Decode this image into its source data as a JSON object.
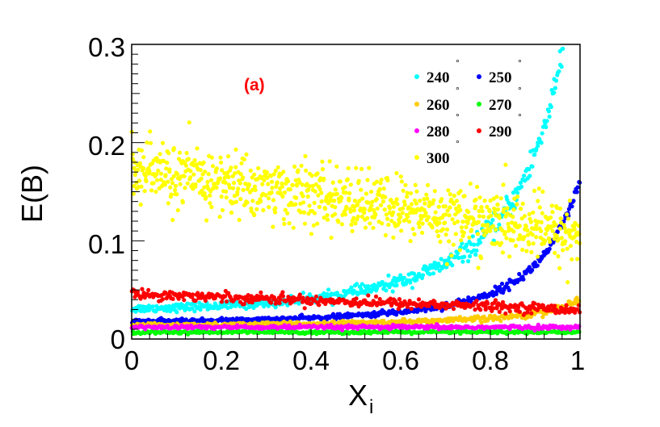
{
  "chart_data": {
    "type": "scatter",
    "panel_label": "(a)",
    "ylabel": "E(B)",
    "xlabel_main": "X",
    "xlabel_sub": "i",
    "xlim": [
      0,
      1
    ],
    "ylim": [
      0,
      0.3
    ],
    "x_ticks": [
      "0",
      "0.2",
      "0.4",
      "0.6",
      "0.8",
      "1"
    ],
    "y_ticks": [
      "0",
      "0.1",
      "0.2",
      "0.3"
    ],
    "degree_symbol": "°",
    "colors": {
      "panel_label": "#ff0000",
      "axis": "#000000"
    },
    "series": [
      {
        "name": "240",
        "color": "#00ffff",
        "start": 0.031,
        "rise": 0.002,
        "k": 4.5,
        "noise": 0.002,
        "noise_growth": 0.007,
        "spike": 0.2
      },
      {
        "name": "250",
        "color": "#0000ff",
        "start": 0.018,
        "rise": 0.0007,
        "k": 4.5,
        "noise": 0.001,
        "noise_growth": 0.002,
        "spike": 0.08
      },
      {
        "name": "260",
        "color": "#ffcc00",
        "start": 0.014,
        "rise": 0.001,
        "k": 2.5,
        "noise": 0.001,
        "noise_growth": 0.001,
        "spike": 0.015
      },
      {
        "name": "270",
        "color": "#00ff00",
        "start": 0.007,
        "rise": 0.0,
        "k": 1,
        "noise": 0.0008,
        "noise_growth": 0.0,
        "spike": 0.0
      },
      {
        "name": "280",
        "color": "#ff00ff",
        "start": 0.012,
        "rise": 0.0,
        "k": 1,
        "noise": 0.001,
        "noise_growth": 0.0,
        "spike": 0.0
      },
      {
        "name": "290",
        "color": "#ff0000",
        "start": 0.046,
        "end": 0.03,
        "noise": 0.0025,
        "noise_growth": 0.0,
        "spike": 0.0
      },
      {
        "name": "300",
        "color": "#ffff00",
        "start": 0.172,
        "end": 0.106,
        "noise": 0.016,
        "noise_growth": 0.0,
        "spike": 0.0
      }
    ]
  }
}
